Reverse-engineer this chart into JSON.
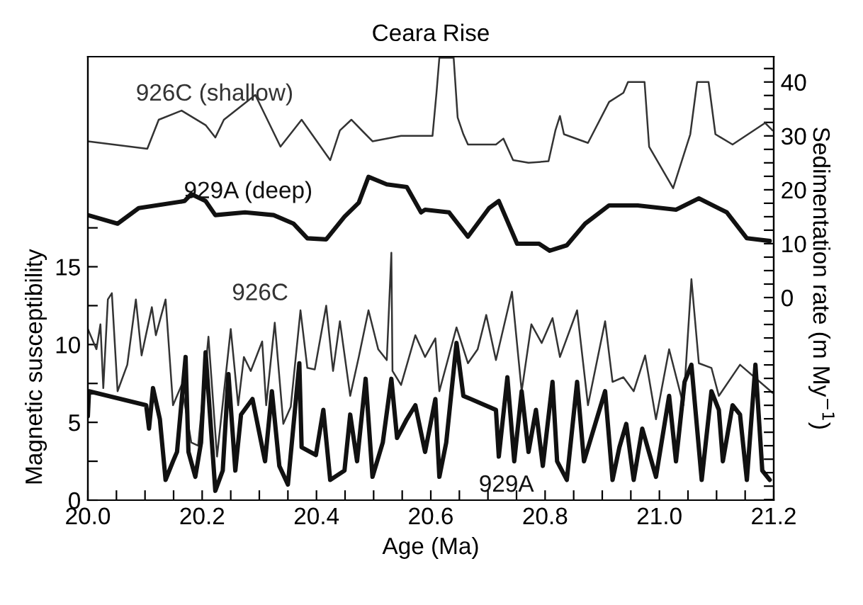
{
  "chart_data": {
    "type": "line",
    "title": "Ceara Rise",
    "xlabel": "Age (Ma)",
    "ylabel": "Magnetic susceptibility",
    "y2label": "Sedimentation rate (m My$^{−1}$)",
    "xlim": [
      20.0,
      21.2
    ],
    "xticks": [
      {
        "value": 20.0,
        "label": "20.0"
      },
      {
        "value": 20.05,
        "label": null
      },
      {
        "value": 20.1,
        "label": null
      },
      {
        "value": 20.15,
        "label": null
      },
      {
        "value": 20.2,
        "label": "20.2"
      },
      {
        "value": 20.25,
        "label": null
      },
      {
        "value": 20.3,
        "label": null
      },
      {
        "value": 20.35,
        "label": null
      },
      {
        "value": 20.4,
        "label": "20.4"
      },
      {
        "value": 20.45,
        "label": null
      },
      {
        "value": 20.5,
        "label": null
      },
      {
        "value": 20.55,
        "label": null
      },
      {
        "value": 20.6,
        "label": "20.6"
      },
      {
        "value": 20.65,
        "label": null
      },
      {
        "value": 20.7,
        "label": null
      },
      {
        "value": 20.75,
        "label": null
      },
      {
        "value": 20.8,
        "label": "20.8"
      },
      {
        "value": 20.85,
        "label": null
      },
      {
        "value": 20.9,
        "label": null
      },
      {
        "value": 20.95,
        "label": null
      },
      {
        "value": 21.0,
        "label": "21.0"
      },
      {
        "value": 21.05,
        "label": null
      },
      {
        "value": 21.1,
        "label": null
      },
      {
        "value": 21.15,
        "label": null
      },
      {
        "value": 21.2,
        "label": "21.2"
      }
    ],
    "ylim": [
      0,
      28.5
    ],
    "yticks": [
      0,
      {
        "value": 2.5,
        "label": null
      },
      5,
      {
        "value": 7.5,
        "label": null
      },
      10,
      {
        "value": 12.5,
        "label": null
      },
      15,
      {
        "value": 17.5,
        "label": null
      }
    ],
    "y2lim": [
      -37.6,
      44.7
    ],
    "y2ticks": [
      {
        "value": -37.5,
        "label": null
      },
      {
        "value": -35,
        "label": null
      },
      {
        "value": -32.5,
        "label": null
      },
      {
        "value": -30,
        "label": null
      },
      {
        "value": -27.5,
        "label": null
      },
      {
        "value": -25,
        "label": null
      },
      {
        "value": -22.5,
        "label": null
      },
      {
        "value": -20,
        "label": null
      },
      {
        "value": -17.5,
        "label": null
      },
      {
        "value": -15,
        "label": null
      },
      {
        "value": -12.5,
        "label": null
      },
      {
        "value": -10,
        "label": null
      },
      {
        "value": -7.5,
        "label": null
      },
      {
        "value": -5,
        "label": null
      },
      {
        "value": -2.5,
        "label": null
      },
      0,
      {
        "value": 2.5,
        "label": null
      },
      {
        "value": 5,
        "label": null
      },
      {
        "value": 7.5,
        "label": null
      },
      10,
      {
        "value": 12.5,
        "label": null
      },
      {
        "value": 15,
        "label": null
      },
      {
        "value": 17.5,
        "label": null
      },
      20,
      {
        "value": 22.5,
        "label": null
      },
      {
        "value": 25,
        "label": null
      },
      {
        "value": 27.5,
        "label": null
      },
      30,
      {
        "value": 32.5,
        "label": null
      },
      {
        "value": 35,
        "label": null
      },
      {
        "value": 37.5,
        "label": null
      },
      40,
      {
        "value": 42.5,
        "label": null
      }
    ],
    "grid": false,
    "legend": false,
    "marker": "none",
    "line_style": "solid",
    "series": [
      {
        "name": "926C (shallow)",
        "axis": "y2",
        "color": "#333333",
        "x": [
          20.0,
          20.104,
          20.124,
          20.164,
          20.206,
          20.223,
          20.238,
          20.293,
          20.337,
          20.374,
          20.424,
          20.441,
          20.461,
          20.498,
          20.548,
          20.603,
          20.61,
          20.615,
          20.64,
          20.647,
          20.657,
          20.665,
          20.714,
          20.727,
          20.744,
          20.771,
          20.806,
          20.818,
          20.826,
          20.833,
          20.875,
          20.912,
          20.937,
          20.945,
          20.974,
          20.982,
          21.024,
          21.054,
          21.066,
          21.086,
          21.098,
          21.128,
          21.185,
          21.198
        ],
        "values": [
          29,
          27.6,
          33,
          34.7,
          32,
          29.7,
          33,
          37.6,
          28,
          33,
          25.5,
          31,
          33,
          29,
          30,
          30,
          38,
          44.5,
          44.5,
          33.4,
          30.3,
          28.4,
          28.4,
          29.5,
          25.5,
          25,
          25.3,
          31,
          33.7,
          30.3,
          28.7,
          36.3,
          38,
          40,
          40,
          28,
          20.3,
          30.3,
          40,
          40,
          30.3,
          28.4,
          32.4,
          31
        ]
      },
      {
        "name": "929A (deep)",
        "axis": "y2",
        "color": "#111111",
        "x": [
          20.0,
          20.052,
          20.089,
          20.169,
          20.181,
          20.206,
          20.223,
          20.275,
          20.325,
          20.36,
          20.384,
          20.417,
          20.449,
          20.474,
          20.491,
          20.523,
          20.558,
          20.583,
          20.59,
          20.632,
          20.665,
          20.702,
          20.719,
          20.751,
          20.789,
          20.808,
          20.838,
          20.87,
          20.912,
          20.962,
          21.029,
          21.069,
          21.118,
          21.153,
          21.193
        ],
        "values": [
          15.3,
          13.7,
          16.6,
          17.9,
          19.2,
          17.9,
          15.3,
          15.8,
          15.3,
          13.7,
          11,
          10.8,
          15,
          17.6,
          22.4,
          21,
          20.5,
          15.8,
          16.3,
          15.8,
          11.3,
          16.6,
          17.9,
          10,
          10,
          8.7,
          9.7,
          13.7,
          17.1,
          17.1,
          16.3,
          18.4,
          15.8,
          11,
          10.5
        ]
      },
      {
        "name": "926C",
        "color": "#333333",
        "x": [
          20.0,
          20.015,
          20.022,
          20.027,
          20.035,
          20.042,
          20.052,
          20.069,
          20.084,
          20.094,
          20.112,
          20.119,
          20.136,
          20.149,
          20.164,
          20.181,
          20.193,
          20.211,
          20.226,
          20.25,
          20.263,
          20.273,
          20.285,
          20.305,
          20.312,
          20.327,
          20.342,
          20.355,
          20.372,
          20.384,
          20.397,
          20.417,
          20.429,
          20.441,
          20.459,
          20.474,
          20.491,
          20.508,
          20.523,
          20.531,
          20.533,
          20.548,
          20.573,
          20.59,
          20.608,
          20.615,
          20.645,
          20.665,
          20.682,
          20.697,
          20.714,
          20.742,
          20.759,
          20.776,
          20.794,
          20.813,
          20.826,
          20.856,
          20.875,
          20.905,
          20.918,
          20.937,
          20.955,
          20.975,
          20.994,
          21.017,
          21.042,
          21.056,
          21.069,
          21.091,
          21.104,
          21.141,
          21.198
        ],
        "values": [
          11.0,
          9.7,
          11.3,
          7.2,
          12.9,
          13.3,
          7.0,
          8.7,
          12.9,
          9.3,
          12.4,
          10.6,
          12.9,
          6.1,
          7.4,
          3.7,
          3.5,
          10.5,
          2.8,
          11.0,
          6.1,
          9.2,
          8.3,
          10.2,
          6.1,
          11.4,
          4.9,
          6.0,
          12.2,
          8.5,
          8.4,
          12.5,
          8.3,
          11.5,
          6.7,
          9.2,
          12.2,
          9.7,
          9.0,
          15.9,
          8.3,
          7.4,
          10.6,
          9.2,
          10.4,
          7.0,
          11.1,
          8.8,
          9.7,
          11.9,
          9.0,
          13.4,
          7.0,
          11.3,
          10.1,
          11.7,
          9.2,
          12.2,
          6.1,
          11.5,
          7.6,
          7.9,
          7.0,
          9.3,
          5.2,
          9.7,
          6.1,
          14.2,
          8.8,
          8.5,
          6.7,
          8.7,
          6.9
        ]
      },
      {
        "name": "929A",
        "color": "#111111",
        "x": [
          20.0,
          20.002,
          20.102,
          20.107,
          20.114,
          20.126,
          20.136,
          20.149,
          20.156,
          20.171,
          20.176,
          20.188,
          20.198,
          20.206,
          20.223,
          20.236,
          20.246,
          20.258,
          20.268,
          20.288,
          20.31,
          20.322,
          20.335,
          20.35,
          20.37,
          20.374,
          20.399,
          20.412,
          20.424,
          20.449,
          20.459,
          20.471,
          20.486,
          20.498,
          20.516,
          20.531,
          20.541,
          20.558,
          20.573,
          20.59,
          20.608,
          20.615,
          20.627,
          20.645,
          20.657,
          20.67,
          20.714,
          20.719,
          20.734,
          20.746,
          20.759,
          20.771,
          20.784,
          20.796,
          20.813,
          20.821,
          20.838,
          20.856,
          20.868,
          20.905,
          20.918,
          20.93,
          20.942,
          20.955,
          20.97,
          20.994,
          21.017,
          21.029,
          21.044,
          21.056,
          21.074,
          21.091,
          21.104,
          21.111,
          21.128,
          21.141,
          21.153,
          21.168,
          21.18,
          21.193
        ],
        "values": [
          5.4,
          7.0,
          6.1,
          4.6,
          7.2,
          5.2,
          1.3,
          2.5,
          3.1,
          9.2,
          3.1,
          1.5,
          3.7,
          9.5,
          0.6,
          1.9,
          8.1,
          1.9,
          5.5,
          6.5,
          2.5,
          7.0,
          2.2,
          1.0,
          8.8,
          3.4,
          2.9,
          5.8,
          1.3,
          1.9,
          5.5,
          2.5,
          7.8,
          1.5,
          3.7,
          7.8,
          4.0,
          5.2,
          6.1,
          3.1,
          6.5,
          1.5,
          3.7,
          10.1,
          6.7,
          6.5,
          5.8,
          2.8,
          7.9,
          2.5,
          7.0,
          3.1,
          5.8,
          2.2,
          7.6,
          2.5,
          1.3,
          7.6,
          2.5,
          7.0,
          1.3,
          3.4,
          4.9,
          1.3,
          4.6,
          1.5,
          6.7,
          2.5,
          7.6,
          8.7,
          1.3,
          7.0,
          5.8,
          2.5,
          6.1,
          5.5,
          1.3,
          8.7,
          1.9,
          1.3
        ]
      }
    ]
  }
}
